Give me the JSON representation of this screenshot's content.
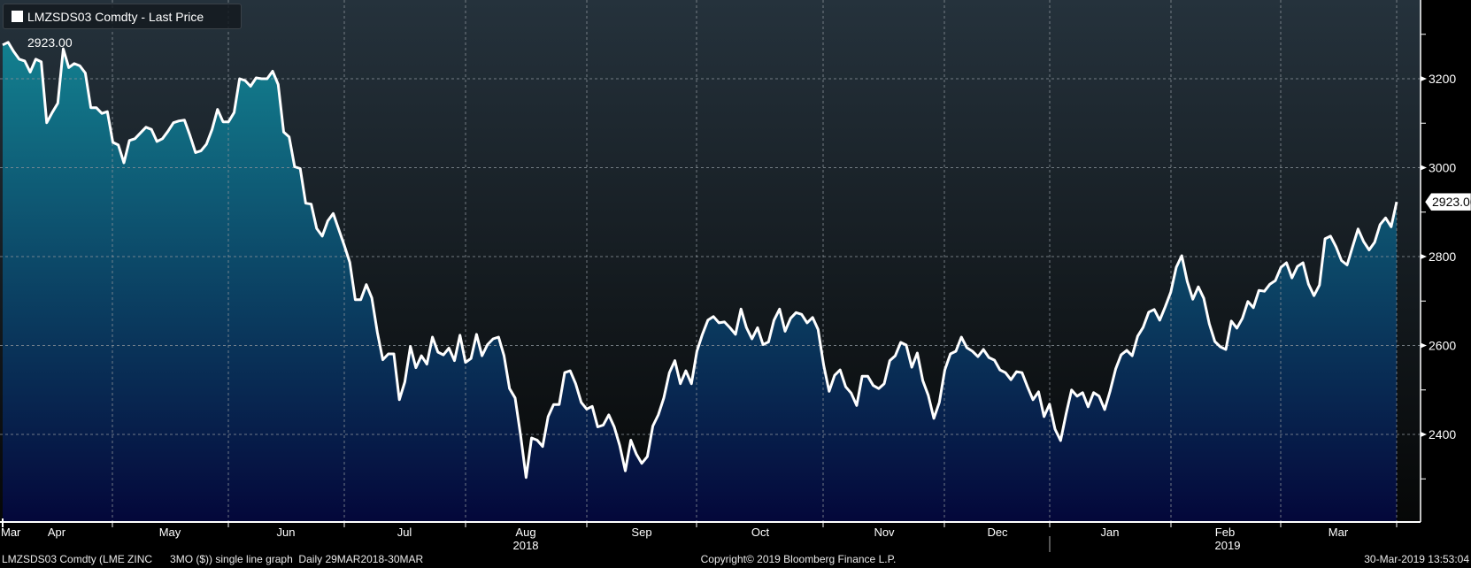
{
  "legend": {
    "label": "LMZSDS03 Comdty - Last Price 2923.00",
    "swatch_color": "#ffffff"
  },
  "last_price_tag": "2923.00",
  "footer": {
    "left": "LMZSDS03 Comdty (LME ZINC      3MO ($)) single line graph  Daily 29MAR2018-30MAR",
    "center": "Copyright© 2019 Bloomberg Finance L.P.",
    "right": "30-Mar-2019 13:53:04"
  },
  "colors": {
    "line": "#ffffff",
    "fill_top": "#138291",
    "fill_bottom": "#04073a",
    "bg_top": "#25323c",
    "bg_bottom": "#060707"
  },
  "chart_data": {
    "type": "area",
    "title": "LMZSDS03 Comdty - Last Price",
    "series_name": "LME Zinc 3MO ($) Last Price",
    "x_range": [
      "29MAR2018",
      "29MAR2019"
    ],
    "frequency": "Daily",
    "ylim": [
      2200,
      3380
    ],
    "yticks": [
      2400,
      2600,
      2800,
      3000,
      3200
    ],
    "yticks_minor": [
      2300,
      2500,
      2700,
      2900,
      3100,
      3300
    ],
    "grid": true,
    "legend_position": "top-left",
    "x_month_labels": [
      "Mar",
      "Apr",
      "May",
      "Jun",
      "Jul",
      "Aug",
      "Sep",
      "Oct",
      "Nov",
      "Dec",
      "Jan",
      "Feb",
      "Mar"
    ],
    "x_year_labels": [
      "2018",
      "2019"
    ],
    "last_value": 2923.0,
    "values": [
      3276,
      3282,
      3261,
      3244,
      3240,
      3215,
      3244,
      3238,
      3101,
      3124,
      3145,
      3267,
      3225,
      3234,
      3229,
      3213,
      3135,
      3135,
      3122,
      3126,
      3057,
      3051,
      3011,
      3061,
      3065,
      3078,
      3091,
      3086,
      3059,
      3065,
      3082,
      3101,
      3105,
      3107,
      3072,
      3034,
      3038,
      3053,
      3086,
      3131,
      3103,
      3103,
      3124,
      3200,
      3196,
      3183,
      3202,
      3200,
      3200,
      3217,
      3187,
      3080,
      3069,
      3002,
      2998,
      2920,
      2918,
      2863,
      2846,
      2880,
      2897,
      2861,
      2825,
      2787,
      2703,
      2703,
      2737,
      2707,
      2630,
      2568,
      2581,
      2581,
      2478,
      2518,
      2598,
      2550,
      2577,
      2558,
      2619,
      2585,
      2579,
      2594,
      2566,
      2623,
      2562,
      2571,
      2625,
      2577,
      2602,
      2615,
      2619,
      2577,
      2503,
      2482,
      2398,
      2303,
      2392,
      2387,
      2373,
      2440,
      2467,
      2467,
      2539,
      2543,
      2514,
      2472,
      2457,
      2463,
      2417,
      2421,
      2444,
      2417,
      2375,
      2318,
      2387,
      2356,
      2335,
      2350,
      2419,
      2444,
      2482,
      2539,
      2566,
      2514,
      2543,
      2514,
      2587,
      2625,
      2657,
      2665,
      2651,
      2653,
      2640,
      2625,
      2682,
      2640,
      2615,
      2640,
      2602,
      2608,
      2657,
      2682,
      2632,
      2661,
      2674,
      2670,
      2651,
      2663,
      2636,
      2556,
      2497,
      2533,
      2545,
      2507,
      2493,
      2465,
      2531,
      2531,
      2510,
      2503,
      2514,
      2566,
      2577,
      2607,
      2601,
      2551,
      2583,
      2521,
      2488,
      2436,
      2472,
      2545,
      2581,
      2587,
      2619,
      2595,
      2587,
      2575,
      2591,
      2573,
      2567,
      2545,
      2539,
      2523,
      2541,
      2539,
      2507,
      2478,
      2496,
      2440,
      2468,
      2412,
      2386,
      2446,
      2500,
      2486,
      2494,
      2462,
      2494,
      2486,
      2456,
      2498,
      2547,
      2579,
      2589,
      2577,
      2621,
      2641,
      2675,
      2681,
      2657,
      2687,
      2720,
      2776,
      2802,
      2744,
      2704,
      2732,
      2706,
      2649,
      2609,
      2597,
      2591,
      2655,
      2639,
      2661,
      2699,
      2685,
      2724,
      2722,
      2738,
      2746,
      2776,
      2786,
      2752,
      2778,
      2786,
      2738,
      2712,
      2736,
      2840,
      2846,
      2822,
      2791,
      2781,
      2822,
      2862,
      2834,
      2815,
      2832,
      2872,
      2887,
      2867,
      2923
    ]
  }
}
